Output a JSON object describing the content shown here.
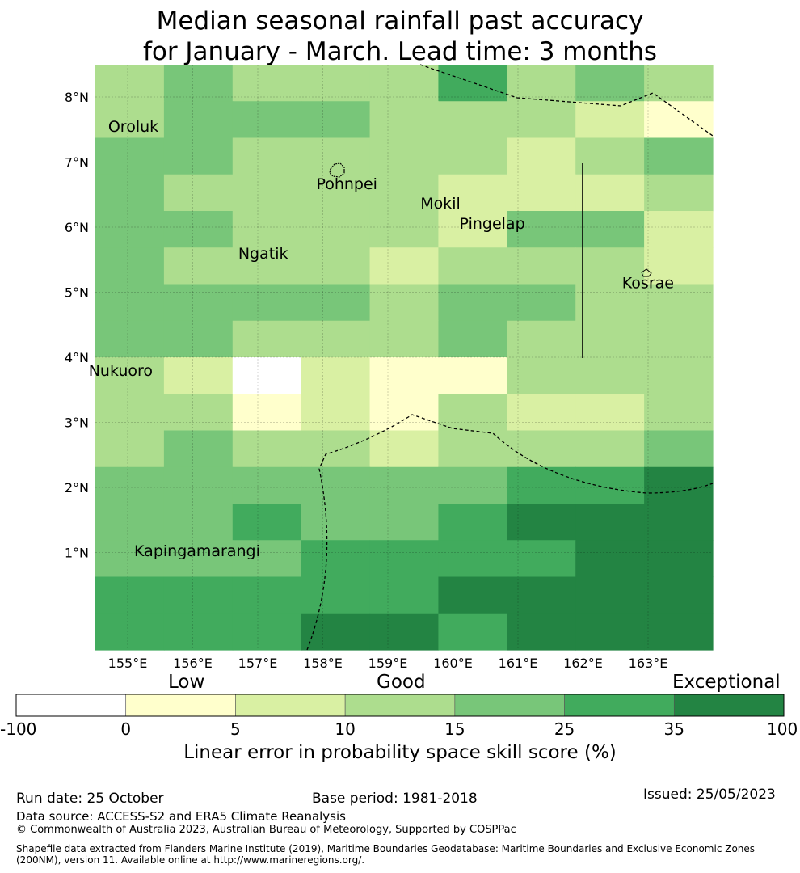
{
  "title": {
    "line1": "Median seasonal rainfall past accuracy",
    "line2": "for January - March. Lead time: 3 months"
  },
  "map": {
    "lat_labels": [
      "8°N",
      "7°N",
      "6°N",
      "5°N",
      "4°N",
      "3°N",
      "2°N",
      "1°N"
    ],
    "lon_labels": [
      "155°E",
      "156°E",
      "157°E",
      "158°E",
      "159°E",
      "160°E",
      "161°E",
      "162°E",
      "163°E"
    ],
    "places": [
      {
        "name": "Oroluk",
        "lon": 154.7,
        "lat": 7.55
      },
      {
        "name": "Pohnpei",
        "lon": 157.9,
        "lat": 6.67
      },
      {
        "name": "Mokil",
        "lon": 159.5,
        "lat": 6.37
      },
      {
        "name": "Pingelap",
        "lon": 160.1,
        "lat": 6.06
      },
      {
        "name": "Ngatik",
        "lon": 156.7,
        "lat": 5.6
      },
      {
        "name": "Kosrae",
        "lon": 162.6,
        "lat": 5.15
      },
      {
        "name": "Nukuoro",
        "lon": 154.4,
        "lat": 3.8
      },
      {
        "name": "Kapingamarangi",
        "lon": 155.1,
        "lat": 1.03
      }
    ],
    "grid_cols": 9,
    "grid_rows": 16,
    "cells": [
      "343335343",
      "344433321",
      "443333234",
      "433332223",
      "443332442",
      "433323332",
      "444434433",
      "443334333",
      "320211333",
      "331213223",
      "343323334",
      "444444556",
      "445445666",
      "444555566",
      "555556666",
      "555665666"
    ]
  },
  "legend": {
    "categories": [
      "Low",
      "Good",
      "Exceptional"
    ],
    "ticks": [
      "-100",
      "0",
      "5",
      "10",
      "15",
      "25",
      "35",
      "100"
    ],
    "colors": [
      "#ffffff",
      "#ffffcc",
      "#d9f0a3",
      "#addd8e",
      "#78c679",
      "#41ab5d",
      "#238443"
    ],
    "axis_title": "Linear error in probability space skill score (%)"
  },
  "footer": {
    "run_date": "Run date: 25 October",
    "base_period": "Base period: 1981-2018",
    "issued": "Issued: 25/05/2023",
    "data_source": "Data source: ACCESS-S2 and ERA5 Climate Reanalysis",
    "copyright": "© Commonwealth of Australia 2023, Australian Bureau of Meteorology, Supported by COSPPac",
    "shapefile_line1": "Shapefile data extracted from Flanders Marine Institute (2019), Maritime Boundaries Geodatabase: Maritime Boundaries and Exclusive Economic Zones",
    "shapefile_line2": "(200NM), version 11. Available online at http://www.marineregions.org/."
  }
}
